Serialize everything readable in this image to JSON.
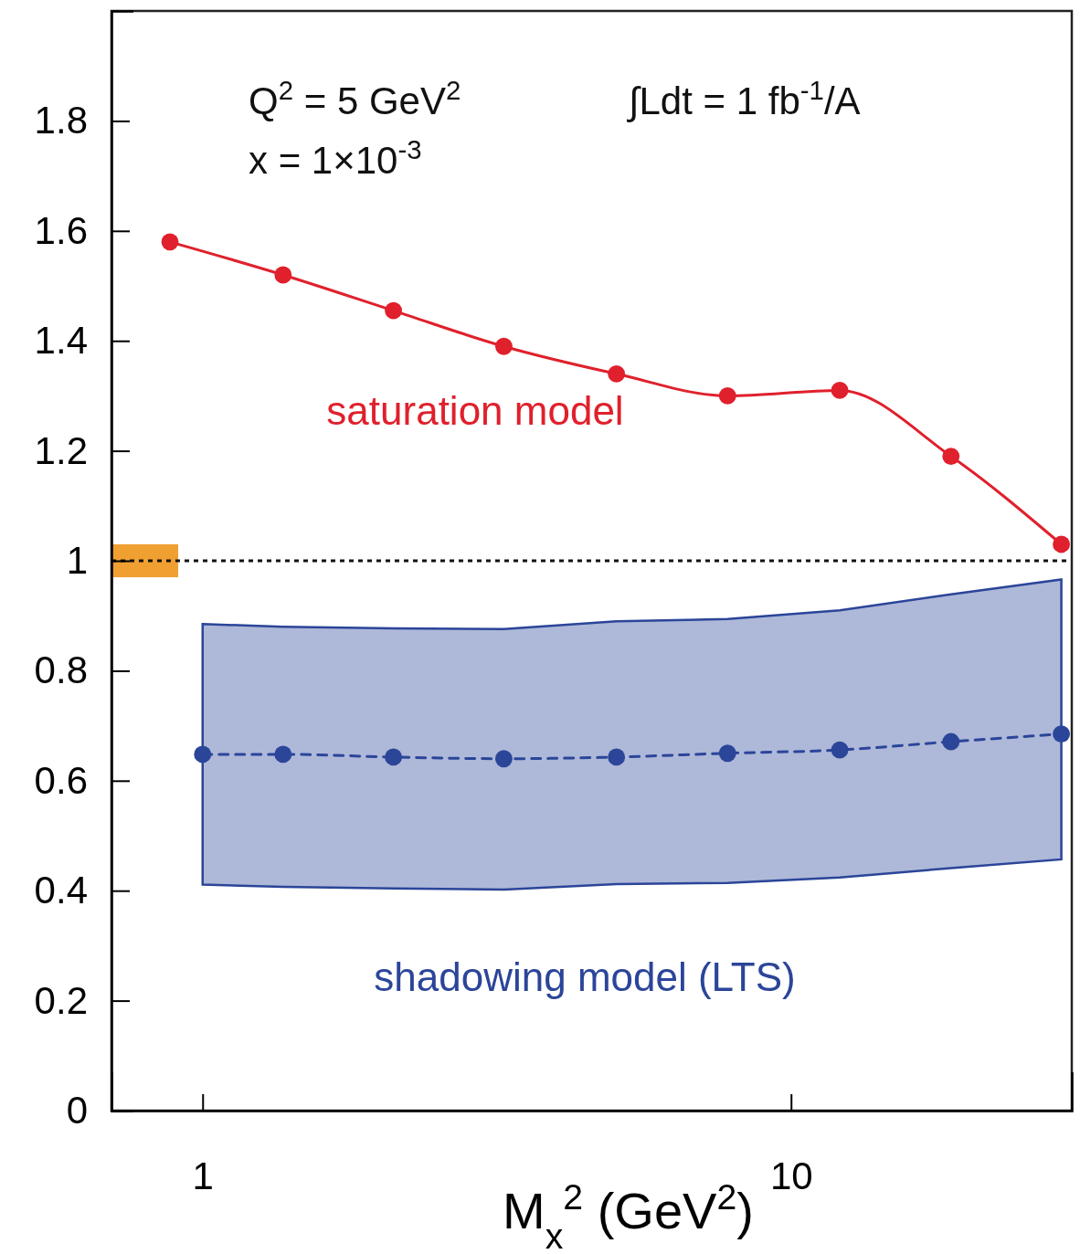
{
  "chart_data": {
    "type": "line",
    "xlabel": "M$_{x}$$^{2}$ (GeV$^{2}$)",
    "annotations": [
      "Q$^{2}$ = 5 GeV$^{2}$",
      "x = 1×10$^{-3}$",
      "∫Ldt = 1 fb$^{-1}$/A"
    ],
    "log": "x",
    "xlim": [
      0.7,
      30
    ],
    "ylim": [
      0,
      2.0
    ],
    "xticks": [
      1,
      10
    ],
    "yticks": [
      0,
      0.2,
      0.4,
      0.6,
      0.8,
      1,
      1.2,
      1.4,
      1.6,
      1.8
    ],
    "grid": false,
    "marker": "circle",
    "ref_lines": [
      {
        "axis": "y",
        "value": 1,
        "color": "#111111",
        "line_style": "dotted"
      }
    ],
    "bands": [
      {
        "axis": "y",
        "from": 0.97,
        "to": 1.03,
        "color": "#f0a030"
      }
    ],
    "series": [
      {
        "name": "saturation model",
        "color": "#e0202c",
        "line_style": "solid",
        "x": [
          0.88,
          1.37,
          2.11,
          3.25,
          5.05,
          7.8,
          12.1,
          18.7,
          28.8
        ],
        "values": [
          1.58,
          1.52,
          1.455,
          1.39,
          1.34,
          1.3,
          1.31,
          1.19,
          1.03
        ]
      },
      {
        "name": "shadowing model (LTS)",
        "color": "#2b4599",
        "line_style": "dashed",
        "x": [
          1.0,
          1.37,
          2.11,
          3.25,
          5.05,
          7.8,
          12.1,
          18.7,
          28.8
        ],
        "values": [
          0.648,
          0.648,
          0.643,
          0.64,
          0.643,
          0.65,
          0.656,
          0.671,
          0.685
        ],
        "lower": [
          0.411,
          0.407,
          0.404,
          0.402,
          0.412,
          0.414,
          0.424,
          0.441,
          0.457
        ],
        "upper": [
          0.885,
          0.88,
          0.877,
          0.876,
          0.89,
          0.894,
          0.91,
          0.939,
          0.966
        ]
      }
    ]
  }
}
